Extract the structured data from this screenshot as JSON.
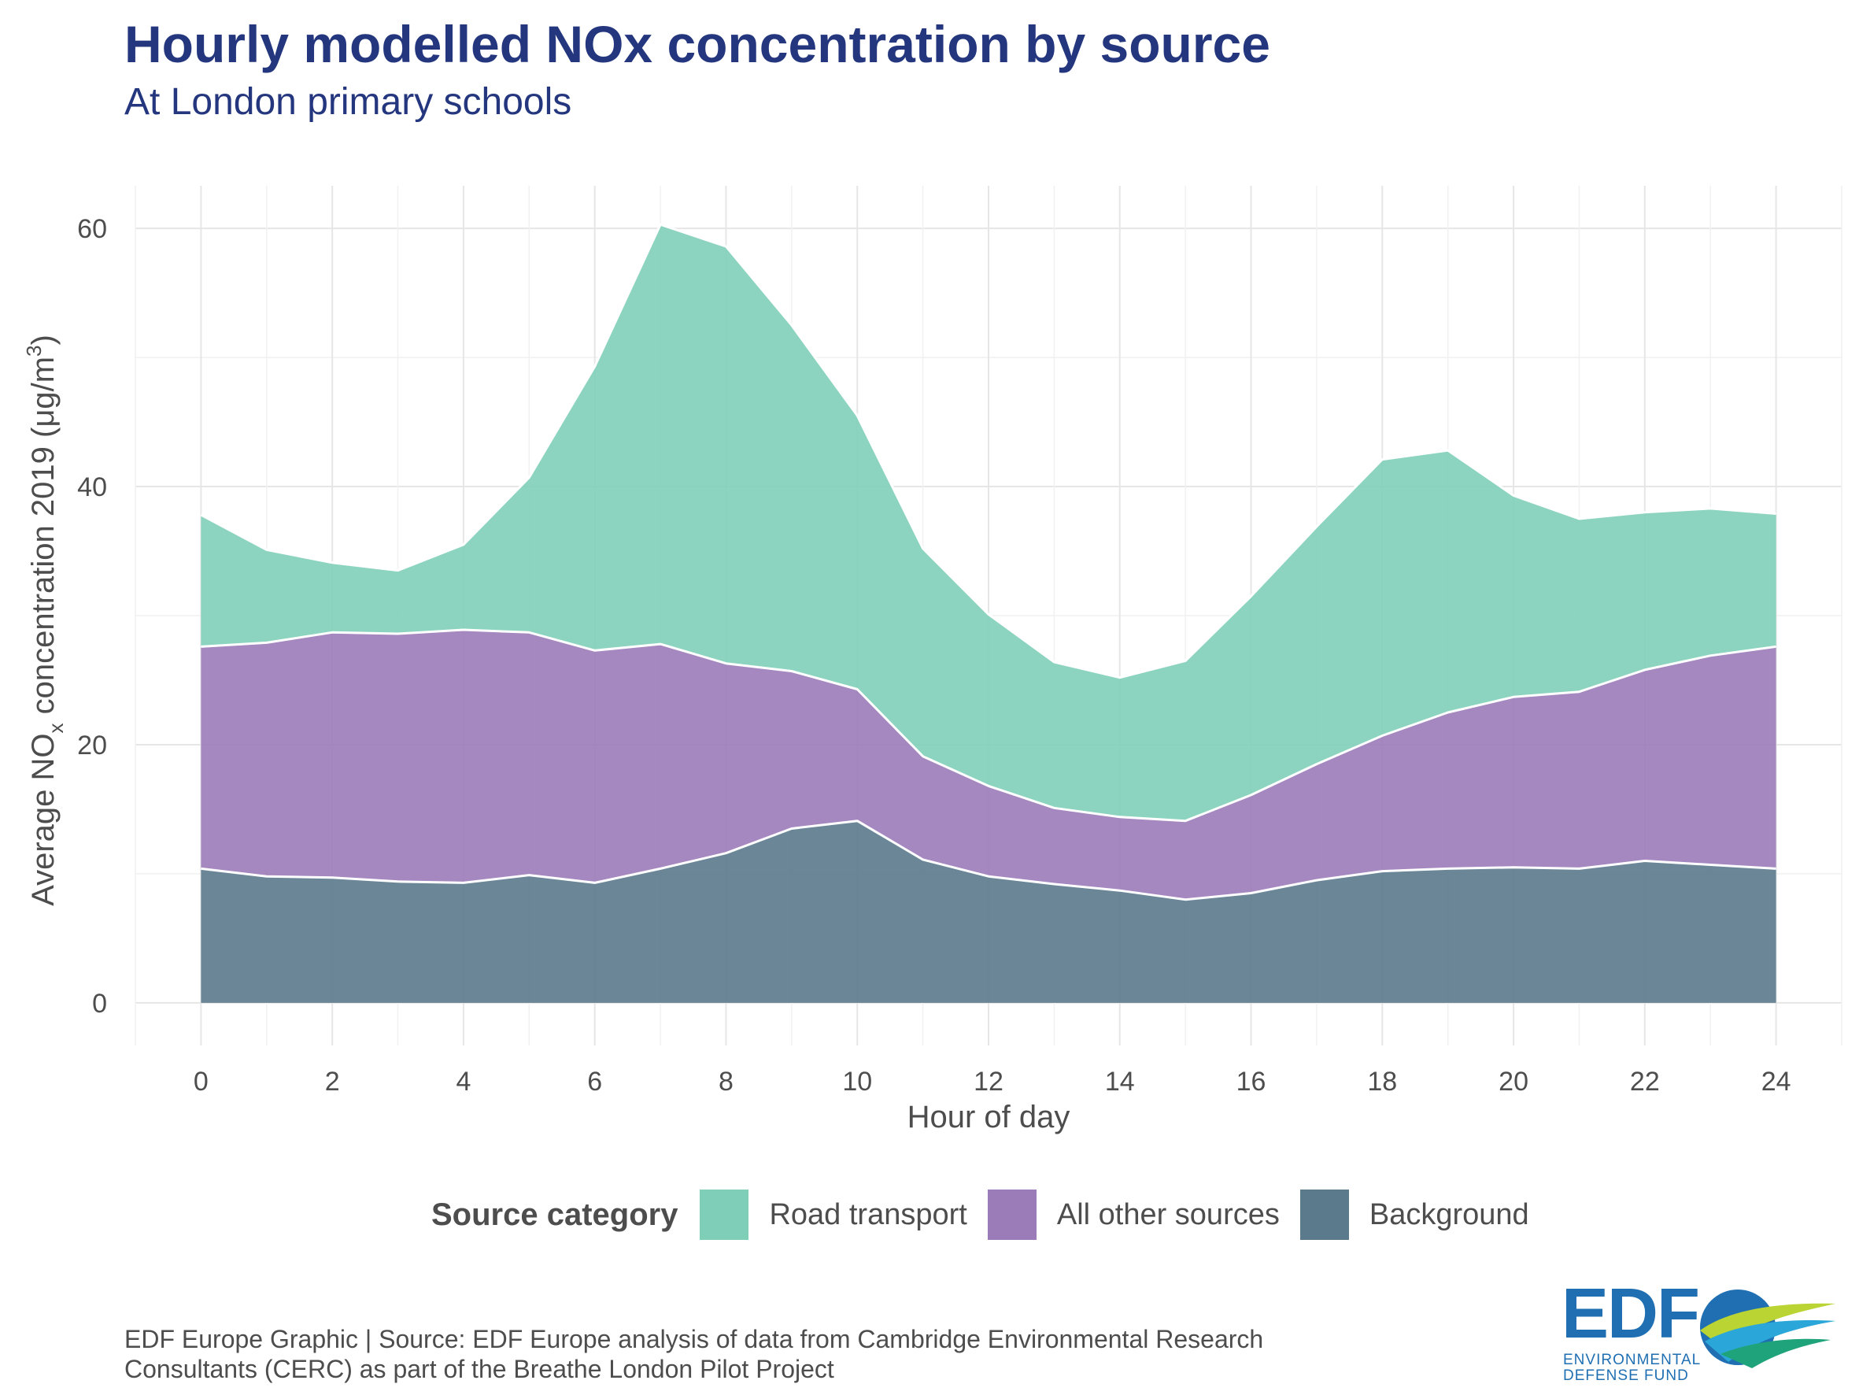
{
  "title": "Hourly modelled NOx concentration by source",
  "subtitle": "At London primary schools",
  "chart_data": {
    "type": "area",
    "stacked": true,
    "x": [
      0,
      1,
      2,
      3,
      4,
      5,
      6,
      7,
      8,
      9,
      10,
      11,
      12,
      13,
      14,
      15,
      16,
      17,
      18,
      19,
      20,
      21,
      22,
      23,
      24
    ],
    "series": [
      {
        "name": "Background",
        "color": "#5b7a8c",
        "values": [
          10.4,
          9.8,
          9.7,
          9.4,
          9.3,
          9.9,
          9.3,
          10.4,
          11.6,
          13.5,
          14.1,
          11.1,
          9.8,
          9.2,
          8.7,
          8.0,
          8.5,
          9.5,
          10.2,
          10.4,
          10.5,
          10.4,
          11.0,
          10.7,
          10.4
        ]
      },
      {
        "name": "All other sources",
        "color": "#9b7bb8",
        "values": [
          17.2,
          18.1,
          19.0,
          19.2,
          19.6,
          18.8,
          18.0,
          17.4,
          14.7,
          12.2,
          10.2,
          8.0,
          7.0,
          5.9,
          5.7,
          6.1,
          7.6,
          9.0,
          10.5,
          12.1,
          13.2,
          13.7,
          14.8,
          16.2,
          17.2
        ]
      },
      {
        "name": "Road transport",
        "color": "#7fcfb8",
        "values": [
          10.2,
          7.2,
          5.4,
          4.9,
          6.6,
          12.0,
          22.0,
          32.5,
          32.3,
          26.8,
          21.2,
          16.1,
          13.3,
          11.3,
          10.8,
          12.4,
          15.4,
          18.4,
          21.4,
          20.3,
          15.6,
          13.4,
          12.2,
          11.4,
          10.3
        ]
      }
    ],
    "xlabel": "Hour of day",
    "ylabel": {
      "prefix": "Average NO",
      "sub": "x",
      "mid": " concentration 2019 (μg/m",
      "sup": "3",
      "suffix": ")"
    },
    "xticks": [
      0,
      2,
      4,
      6,
      8,
      10,
      12,
      14,
      16,
      18,
      20,
      22,
      24
    ],
    "yticks": [
      0,
      20,
      40,
      60
    ],
    "xlim": [
      -1,
      25
    ],
    "ylim": [
      -3.3,
      63.3
    ],
    "grid": true,
    "legend_position": "bottom"
  },
  "legend": {
    "title": "Source category",
    "items": [
      {
        "label": "Road transport",
        "color": "#7fcfb8"
      },
      {
        "label": "All other sources",
        "color": "#9b7bb8"
      },
      {
        "label": "Background",
        "color": "#5b7a8c"
      }
    ]
  },
  "caption": {
    "line1": "EDF Europe Graphic | Source: EDF Europe analysis of data from Cambridge Environmental Research",
    "line2": "Consultants (CERC) as part of the Breathe London Pilot Project"
  },
  "logo": {
    "text": "EDF",
    "tag_line1": "ENVIRONMENTAL",
    "tag_line2": "DEFENSE FUND"
  }
}
